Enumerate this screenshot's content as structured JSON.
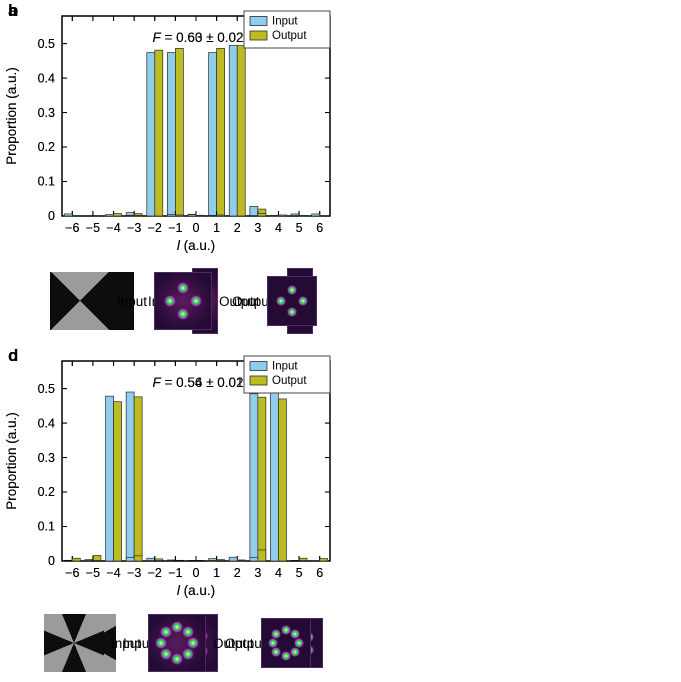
{
  "colors": {
    "input_bar": "#8FCDEA",
    "output_bar": "#BCBB22",
    "bar_edge": "#2B2B2B",
    "axis": "#000000",
    "mask_gray": "#9B9B9B",
    "mask_black": "#0D0D0D",
    "pattern_bg": "#240B34",
    "legend_border": "#444444",
    "background": "#FFFFFF"
  },
  "figure": {
    "panels": [
      {
        "label": "a",
        "fidelity_label": "F = 0.63 ± 0.02",
        "legend": {
          "input": "Input",
          "output": "Output"
        },
        "xlabel": "l (a.u.)",
        "ylabel": "Proportion (a.u.)",
        "strip": {
          "input_label": "Input",
          "output_label": "Output",
          "mask": "two-zone-binary-phase-mask",
          "mask_zones": 2,
          "spots": 2,
          "arrangement": "vertical-pair"
        }
      },
      {
        "label": "b",
        "fidelity_label": "F = 0.60 ± 0.02",
        "legend": {
          "input": "Input",
          "output": "Output"
        },
        "xlabel": "l (a.u.)",
        "ylabel": "Proportion (a.u.)",
        "strip": {
          "input_label": "Input",
          "output_label": "Output",
          "mask": "four-sector-binary-phase-mask",
          "mask_zones": 4,
          "spots": 4,
          "arrangement": "ring"
        }
      },
      {
        "label": "c",
        "fidelity_label": "F = 0.56 ± 0.01",
        "legend": {
          "input": "Input",
          "output": "Output"
        },
        "xlabel": "l (a.u.)",
        "ylabel": "Proportion (a.u.)",
        "strip": {
          "input_label": "Input",
          "output_label": "Output",
          "mask": "six-sector-binary-phase-mask",
          "mask_zones": 6,
          "spots": 6,
          "arrangement": "ring"
        }
      },
      {
        "label": "d",
        "fidelity_label": "F = 0.54 ± 0.02",
        "legend": {
          "input": "Input",
          "output": "Output"
        },
        "xlabel": "l (a.u.)",
        "ylabel": "Proportion (a.u.)",
        "strip": {
          "input_label": "Input",
          "output_label": "Output",
          "mask": "eight-sector-binary-phase-mask",
          "mask_zones": 8,
          "spots": 8,
          "arrangement": "ring"
        }
      }
    ]
  },
  "chart_data": [
    {
      "type": "bar",
      "panel": "a",
      "title": "F = 0.63 ± 0.02",
      "categories": [
        -6,
        -5,
        -4,
        -3,
        -2,
        -1,
        0,
        1,
        2,
        3,
        4,
        5,
        6
      ],
      "series": [
        {
          "name": "Input",
          "color_key": "input_bar",
          "values": [
            0,
            0,
            0,
            0.01,
            0.002,
            0.474,
            0.005,
            0.474,
            0.002,
            0.028,
            0,
            0.006,
            0
          ]
        },
        {
          "name": "Output",
          "color_key": "output_bar",
          "values": [
            0,
            0,
            0,
            0.007,
            0.001,
            0.486,
            0.002,
            0.486,
            0.002,
            0.02,
            0,
            0,
            0
          ]
        }
      ],
      "xlabel": "l (a.u.)",
      "ylabel": "Proportion (a.u.)",
      "ylim": [
        0,
        0.58
      ],
      "yticks": [
        0,
        0.1,
        0.2,
        0.3,
        0.4,
        0.5
      ],
      "legend_position": "upper-right",
      "grid": false
    },
    {
      "type": "bar",
      "panel": "b",
      "title": "F = 0.60 ± 0.02",
      "categories": [
        -6,
        -5,
        -4,
        -3,
        -2,
        -1,
        0,
        1,
        2,
        3,
        4,
        5,
        6
      ],
      "series": [
        {
          "name": "Input",
          "color_key": "input_bar",
          "values": [
            0.006,
            0,
            0.004,
            0.002,
            0.474,
            0.004,
            0.004,
            0.002,
            0.495,
            0,
            0.002,
            0,
            0.006
          ]
        },
        {
          "name": "Output",
          "color_key": "output_bar",
          "values": [
            0,
            0,
            0.007,
            0.001,
            0.481,
            0.003,
            0.002,
            0.003,
            0.494,
            0.007,
            0.003,
            0.001,
            0
          ]
        }
      ],
      "xlabel": "l (a.u.)",
      "ylabel": "Proportion (a.u.)",
      "ylim": [
        0,
        0.58
      ],
      "yticks": [
        0,
        0.1,
        0.2,
        0.3,
        0.4,
        0.5
      ],
      "legend_position": "upper-right",
      "grid": false
    },
    {
      "type": "bar",
      "panel": "c",
      "title": "F = 0.56 ± 0.01",
      "categories": [
        -6,
        -5,
        -4,
        -3,
        -2,
        -1,
        0,
        1,
        2,
        3,
        4,
        5,
        6
      ],
      "series": [
        {
          "name": "Input",
          "color_key": "input_bar",
          "values": [
            0.002,
            0.004,
            0.002,
            0.49,
            0.008,
            0.003,
            0.001,
            0.007,
            0.007,
            0.485,
            0.002,
            0.001,
            0
          ]
        },
        {
          "name": "Output",
          "color_key": "output_bar",
          "values": [
            0,
            0.016,
            0.003,
            0.476,
            0.006,
            0.002,
            0.001,
            0.004,
            0.003,
            0.475,
            0.002,
            0.008,
            0
          ]
        }
      ],
      "xlabel": "l (a.u.)",
      "ylabel": "Proportion (a.u.)",
      "ylim": [
        0,
        0.58
      ],
      "yticks": [
        0,
        0.1,
        0.2,
        0.3,
        0.4,
        0.5
      ],
      "legend_position": "upper-right",
      "grid": false
    },
    {
      "type": "bar",
      "panel": "d",
      "title": "F = 0.54 ± 0.02",
      "categories": [
        -6,
        -5,
        -4,
        -3,
        -2,
        -1,
        0,
        1,
        2,
        3,
        4,
        5,
        6
      ],
      "series": [
        {
          "name": "Input",
          "color_key": "input_bar",
          "values": [
            0,
            0,
            0.478,
            0.01,
            0,
            0,
            0,
            0.001,
            0.011,
            0.01,
            0.488,
            0,
            0
          ]
        },
        {
          "name": "Output",
          "color_key": "output_bar",
          "values": [
            0.008,
            0,
            0.462,
            0.015,
            0,
            0,
            0,
            0,
            0.001,
            0.032,
            0.47,
            0,
            0.007
          ]
        }
      ],
      "xlabel": "l (a.u.)",
      "ylabel": "Proportion (a.u.)",
      "ylim": [
        0,
        0.58
      ],
      "yticks": [
        0,
        0.1,
        0.2,
        0.3,
        0.4,
        0.5
      ],
      "legend_position": "upper-right",
      "grid": false
    }
  ]
}
